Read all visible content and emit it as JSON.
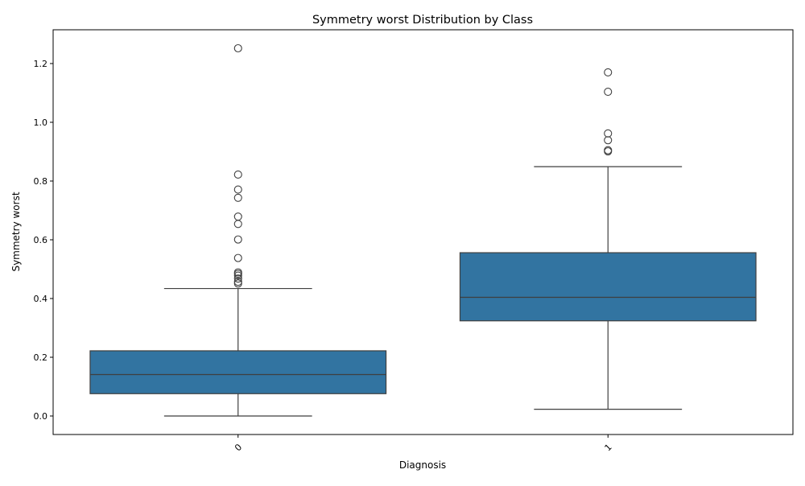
{
  "chart_data": {
    "type": "box",
    "title": "Symmetry worst Distribution by Class",
    "xlabel": "Diagnosis",
    "ylabel": "Symmetry worst",
    "ylim": [
      -0.063,
      1.315
    ],
    "yticks": [
      0.0,
      0.2,
      0.4,
      0.6,
      0.8,
      1.0,
      1.2
    ],
    "ytick_labels": [
      "0.0",
      "0.2",
      "0.4",
      "0.6",
      "0.8",
      "1.0",
      "1.2"
    ],
    "categories": [
      "0",
      "1"
    ],
    "box_color": "#3274a1",
    "grid": false,
    "boxes": [
      {
        "category": "0",
        "whisker_low": 0.0,
        "q1": 0.076,
        "median": 0.141,
        "q3": 0.222,
        "whisker_high": 0.434,
        "outliers": [
          0.451,
          0.457,
          0.468,
          0.478,
          0.484,
          0.489,
          0.538,
          0.601,
          0.654,
          0.679,
          0.743,
          0.771,
          0.822,
          1.252
        ]
      },
      {
        "category": "1",
        "whisker_low": 0.023,
        "q1": 0.324,
        "median": 0.404,
        "q3": 0.556,
        "whisker_high": 0.849,
        "outliers": [
          0.901,
          0.905,
          0.939,
          0.962,
          1.104,
          1.17
        ]
      }
    ]
  }
}
